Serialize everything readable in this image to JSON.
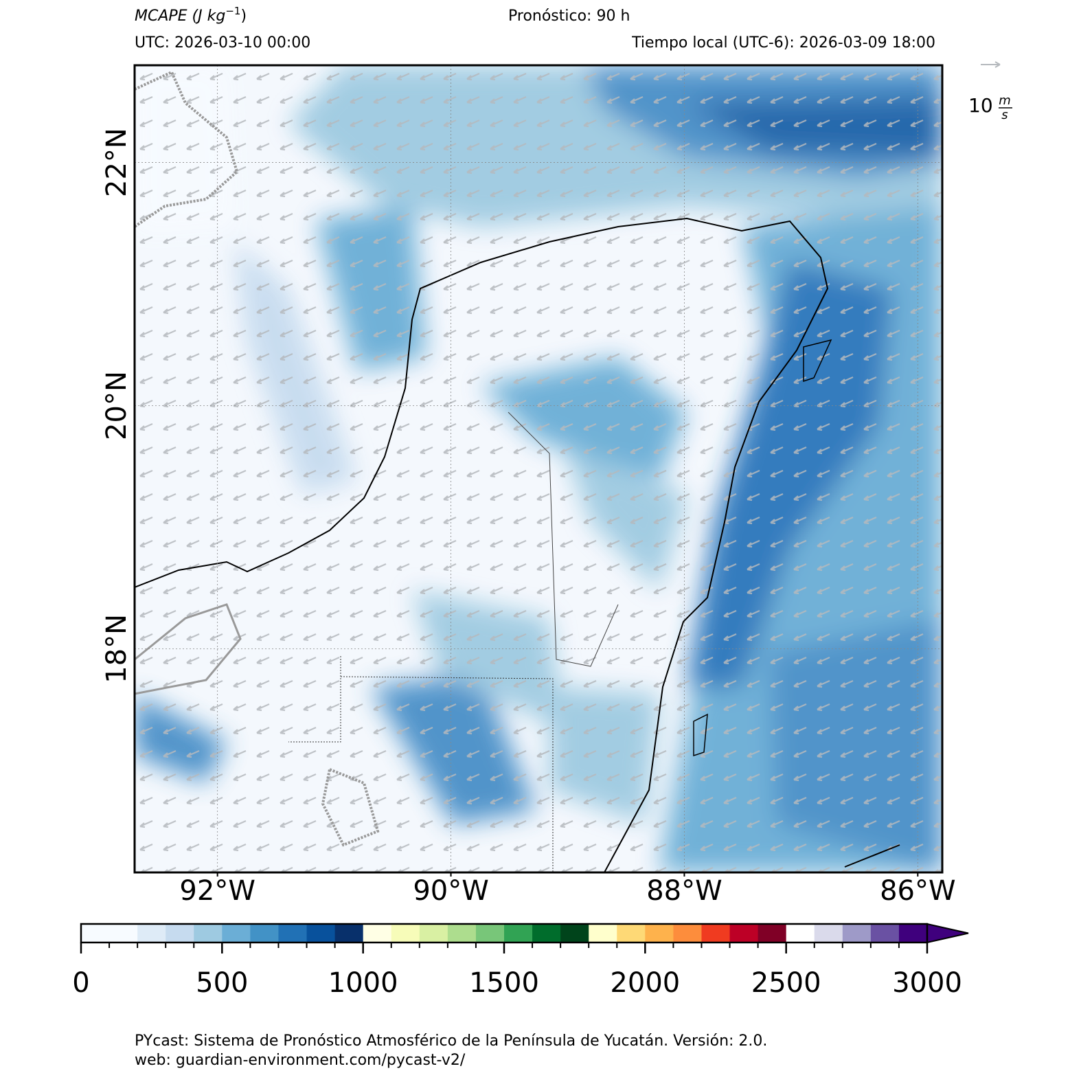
{
  "header": {
    "title": {
      "text": "MCAPE (J kg",
      "superscript": "−1",
      "close": ")"
    },
    "forecast": "Pronóstico: 90 h",
    "utc": "UTC:  2026-03-10 00:00",
    "local": "Tiempo local (UTC-6): 2026-03-09 18:00"
  },
  "map": {
    "xlim": [
      -92.71,
      -85.79
    ],
    "ylim": [
      16.16,
      22.8
    ],
    "grid": true,
    "xticks": [
      {
        "value": -92,
        "label": "92°W"
      },
      {
        "value": -90,
        "label": "90°W"
      },
      {
        "value": -88,
        "label": "88°W"
      },
      {
        "value": -86,
        "label": "86°W"
      }
    ],
    "yticks": [
      {
        "value": 18,
        "label": "18°N"
      },
      {
        "value": 20,
        "label": "20°N"
      },
      {
        "value": 22,
        "label": "22°N"
      }
    ],
    "wind_key": {
      "value": "10",
      "numerator": "m",
      "denominator": "s"
    }
  },
  "colorbar": {
    "extend": "max",
    "bounds": [
      0,
      100,
      200,
      300,
      400,
      500,
      600,
      700,
      800,
      900,
      1000,
      1100,
      1200,
      1300,
      1400,
      1500,
      1600,
      1700,
      1800,
      1900,
      2000,
      2100,
      2200,
      2300,
      2400,
      2500,
      2600,
      2700,
      2800,
      2900,
      3000
    ],
    "colors": [
      "#f7fbff",
      "#f7fbff",
      "#deebf7",
      "#c6dbef",
      "#9ecae1",
      "#6baed6",
      "#4292c6",
      "#2171b5",
      "#08519c",
      "#08306b",
      "#ffffe5",
      "#f7fcb9",
      "#d9f0a3",
      "#addd8e",
      "#78c679",
      "#31a354",
      "#006d2c",
      "#00441b",
      "#ffffcc",
      "#fed976",
      "#feb24c",
      "#fd8d3c",
      "#f03b20",
      "#bd0026",
      "#800026",
      "#ffffff",
      "#dadaeb",
      "#9e9ac8",
      "#6a51a3",
      "#3f007d"
    ],
    "ticks": [
      0,
      500,
      1000,
      1500,
      2000,
      2500,
      3000
    ]
  },
  "footer": {
    "line1": "PYcast: Sistema de Pronóstico Atmosférico de la Península de Yucatán. Versión: 2.0.",
    "line2": "web: guardian-environment.com/pycast-v2/"
  }
}
